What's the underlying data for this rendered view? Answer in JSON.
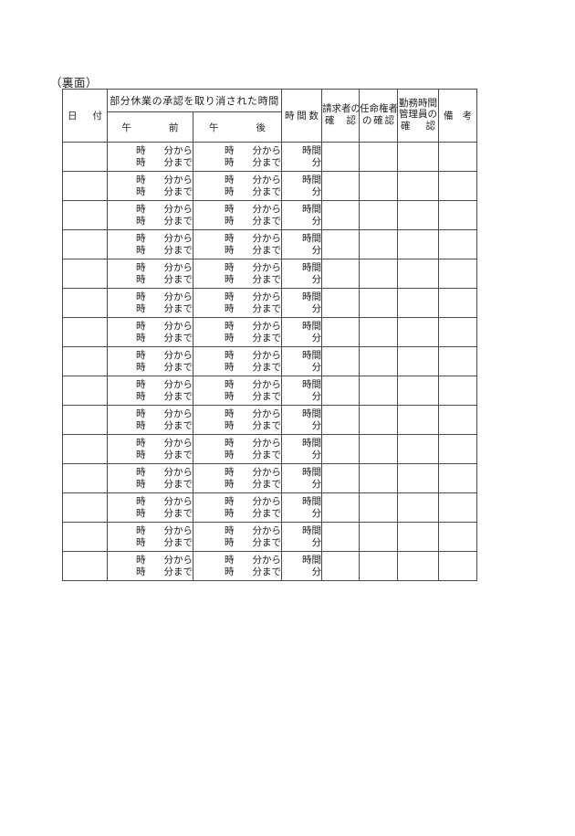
{
  "page": {
    "side_label": "（裏面）"
  },
  "table": {
    "header": {
      "date": "日付",
      "cancelled_time_group": "部分休業の承認を取り消された時間",
      "am": "午前",
      "pm": "午後",
      "hours_total": "時間数",
      "claimant_confirm_line1": "請求者の",
      "claimant_confirm_line2": "確認",
      "appointer_confirm_line1": "任命権者",
      "appointer_confirm_line2": "の確認",
      "manager_confirm_line1": "勤務時間",
      "manager_confirm_line2": "管理員の",
      "manager_confirm_line3": "確認",
      "remarks": "備考"
    },
    "row_count": 15,
    "row_template": {
      "from_hour_label": "時",
      "from_minute_label": "分から",
      "to_hour_label": "時",
      "to_minute_label": "分まで",
      "hours_unit_label": "時間",
      "minutes_unit_label": "分"
    }
  },
  "colors": {
    "background": "#ffffff",
    "text": "#1f1f1f",
    "border": "#4a4a4a"
  }
}
